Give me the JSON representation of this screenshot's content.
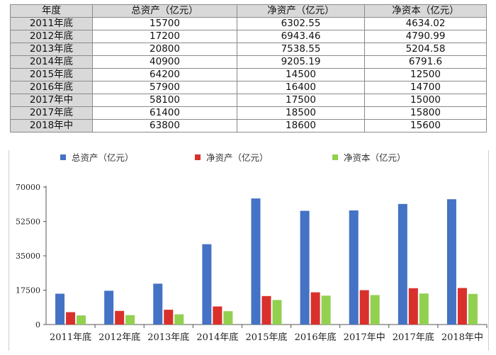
{
  "table": {
    "headers": [
      "年度",
      "总资产（亿元）",
      "净资产（亿元）",
      "净资本（亿元）"
    ],
    "rows": [
      [
        "2011年底",
        "15700",
        "6302.55",
        "4634.02"
      ],
      [
        "2012年底",
        "17200",
        "6943.46",
        "4790.99"
      ],
      [
        "2013年底",
        "20800",
        "7538.55",
        "5204.58"
      ],
      [
        "2014年底",
        "40900",
        "9205.19",
        "6791.6"
      ],
      [
        "2015年底",
        "64200",
        "14500",
        "12500"
      ],
      [
        "2016年底",
        "57900",
        "16400",
        "14700"
      ],
      [
        "2017年中",
        "58100",
        "17500",
        "15000"
      ],
      [
        "2017年底",
        "61400",
        "18500",
        "15800"
      ],
      [
        "2018年中",
        "63800",
        "18600",
        "15600"
      ]
    ]
  },
  "chart_data": {
    "type": "bar",
    "title": "",
    "xlabel": "",
    "ylabel": "",
    "categories": [
      "2011年底",
      "2012年底",
      "2013年底",
      "2014年底",
      "2015年底",
      "2016年底",
      "2017年中",
      "2017年底",
      "2018年中"
    ],
    "series": [
      {
        "name": "总资产（亿元）",
        "color": "#4472c4",
        "values": [
          15700,
          17200,
          20800,
          40900,
          64200,
          57900,
          58100,
          61400,
          63800
        ]
      },
      {
        "name": "净资产（亿元）",
        "color": "#d9302c",
        "values": [
          6302.55,
          6943.46,
          7538.55,
          9205.19,
          14500,
          16400,
          17500,
          18500,
          18600
        ]
      },
      {
        "name": "净资本（亿元）",
        "color": "#92d050",
        "values": [
          4634.02,
          4790.99,
          5204.58,
          6791.6,
          12500,
          14700,
          15000,
          15800,
          15600
        ]
      }
    ],
    "ylim": [
      0,
      70000
    ],
    "yticks": [
      "0",
      "17500",
      "35000",
      "52500",
      "70000"
    ],
    "grid": false,
    "legend_position": "top"
  }
}
